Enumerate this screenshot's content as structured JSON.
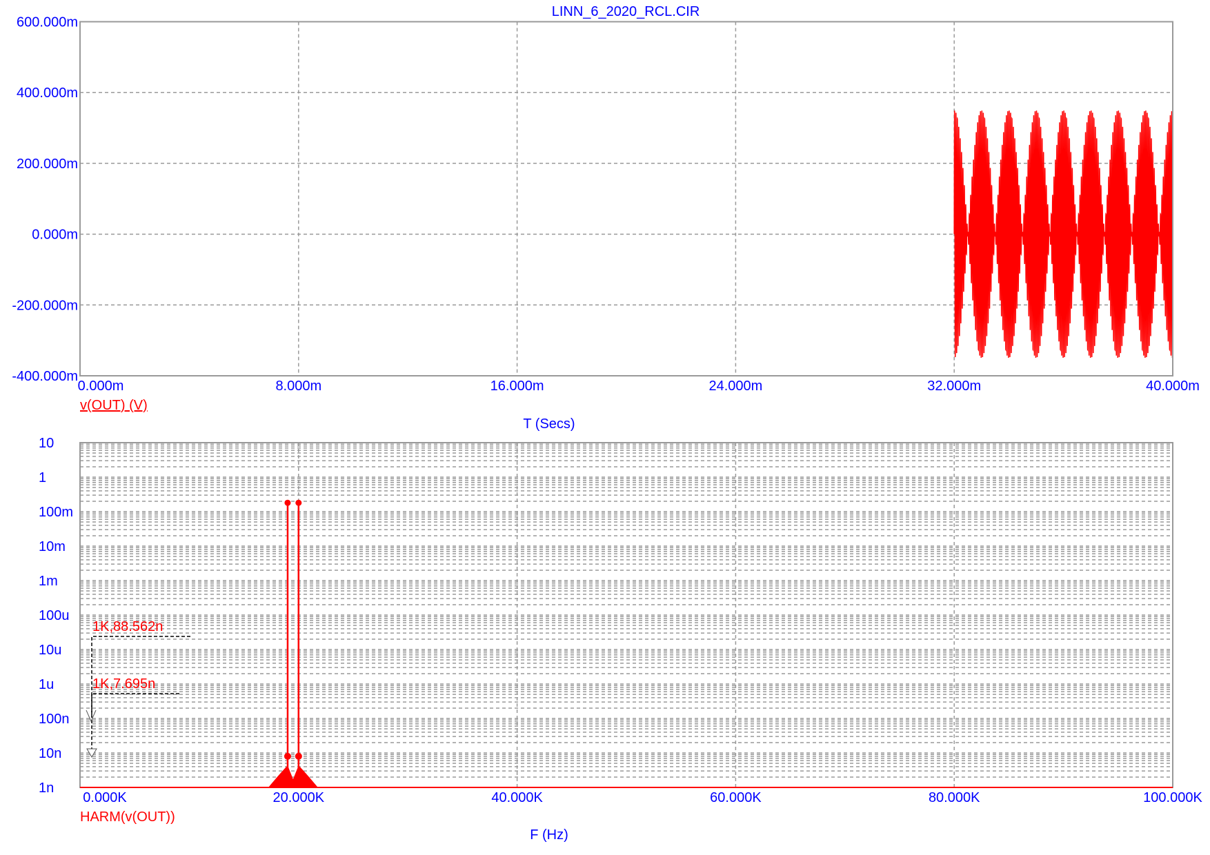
{
  "colors": {
    "axis_text": "#0000ff",
    "trace": "#ff0000",
    "grid": "#999999",
    "cursor": "#000000"
  },
  "chart_data": [
    {
      "type": "line",
      "title": "LINN_6_2020_RCL.CIR",
      "xlabel": "T (Secs)",
      "ylabel": "",
      "xlim": [
        0,
        0.04
      ],
      "ylim": [
        -0.4,
        0.6
      ],
      "x_ticks": [
        "0.000m",
        "8.000m",
        "16.000m",
        "24.000m",
        "32.000m",
        "40.000m"
      ],
      "y_ticks": [
        "600.000m",
        "400.000m",
        "200.000m",
        "0.000m",
        "-200.000m",
        "-400.000m"
      ],
      "grid": true,
      "series": [
        {
          "name": "v(OUT) (V)",
          "x_start": 0.032,
          "x_end": 0.04,
          "components": [
            {
              "frequency_hz": 19000,
              "amplitude": 0.175
            },
            {
              "frequency_hz": 20000,
              "amplitude": 0.175
            }
          ],
          "peak": 0.35
        }
      ]
    },
    {
      "type": "bar",
      "title": "",
      "xlabel": "F (Hz)",
      "ylabel": "",
      "xlim": [
        0,
        100000
      ],
      "ylim": [
        1e-09,
        10
      ],
      "y_scale": "log",
      "x_ticks": [
        "0.000K",
        "20.000K",
        "40.000K",
        "60.000K",
        "80.000K",
        "100.000K"
      ],
      "y_ticks": [
        "10",
        "1",
        "100m",
        "10m",
        "1m",
        "100u",
        "10u",
        "1u",
        "100n",
        "10n",
        "1n"
      ],
      "grid": true,
      "series": [
        {
          "name": "HARM(v(OUT))",
          "x": [
            19000,
            20000
          ],
          "values": [
            0.18,
            0.18
          ],
          "sideband_floor": [
            3e-09,
            8e-09
          ]
        }
      ],
      "annotations": [
        "1K,88.562n",
        "1K,7.695n"
      ]
    }
  ]
}
